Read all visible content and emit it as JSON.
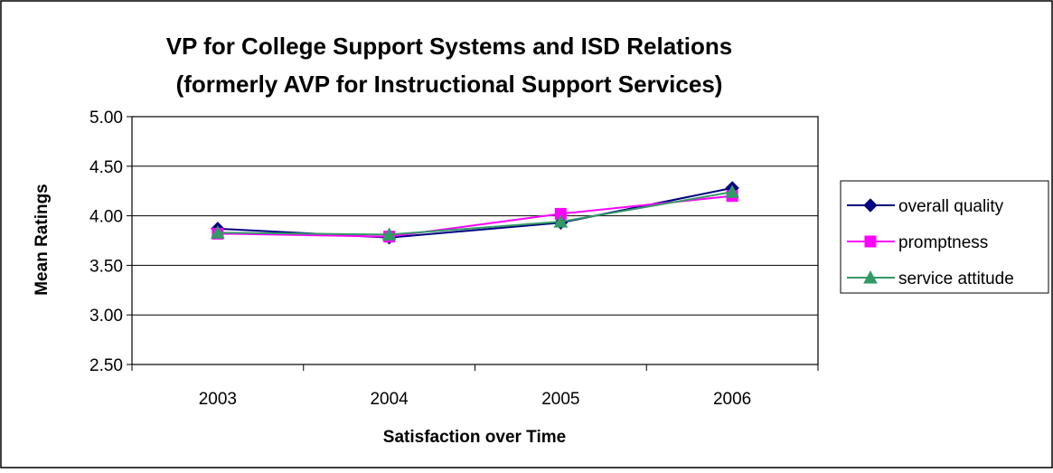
{
  "chart_data": {
    "type": "line",
    "title_lines": [
      "VP for College Support Systems and ISD Relations",
      "(formerly AVP for Instructional Support Services)"
    ],
    "xlabel": "Satisfaction over Time",
    "ylabel": "Mean Ratings",
    "categories": [
      "2003",
      "2004",
      "2005",
      "2006"
    ],
    "ylim": [
      2.5,
      5.0
    ],
    "yticks": [
      "2.50",
      "3.00",
      "3.50",
      "4.00",
      "4.50",
      "5.00"
    ],
    "grid": true,
    "legend_position": "right",
    "series": [
      {
        "name": "overall quality",
        "color": "#000080",
        "marker": "diamond",
        "values": [
          3.87,
          3.78,
          3.93,
          4.28
        ]
      },
      {
        "name": "promptness",
        "color": "#ff00ff",
        "marker": "square",
        "values": [
          3.82,
          3.79,
          4.02,
          4.2
        ]
      },
      {
        "name": "service attitude",
        "color": "#339966",
        "marker": "triangle",
        "values": [
          3.83,
          3.81,
          3.94,
          4.24
        ]
      }
    ]
  }
}
